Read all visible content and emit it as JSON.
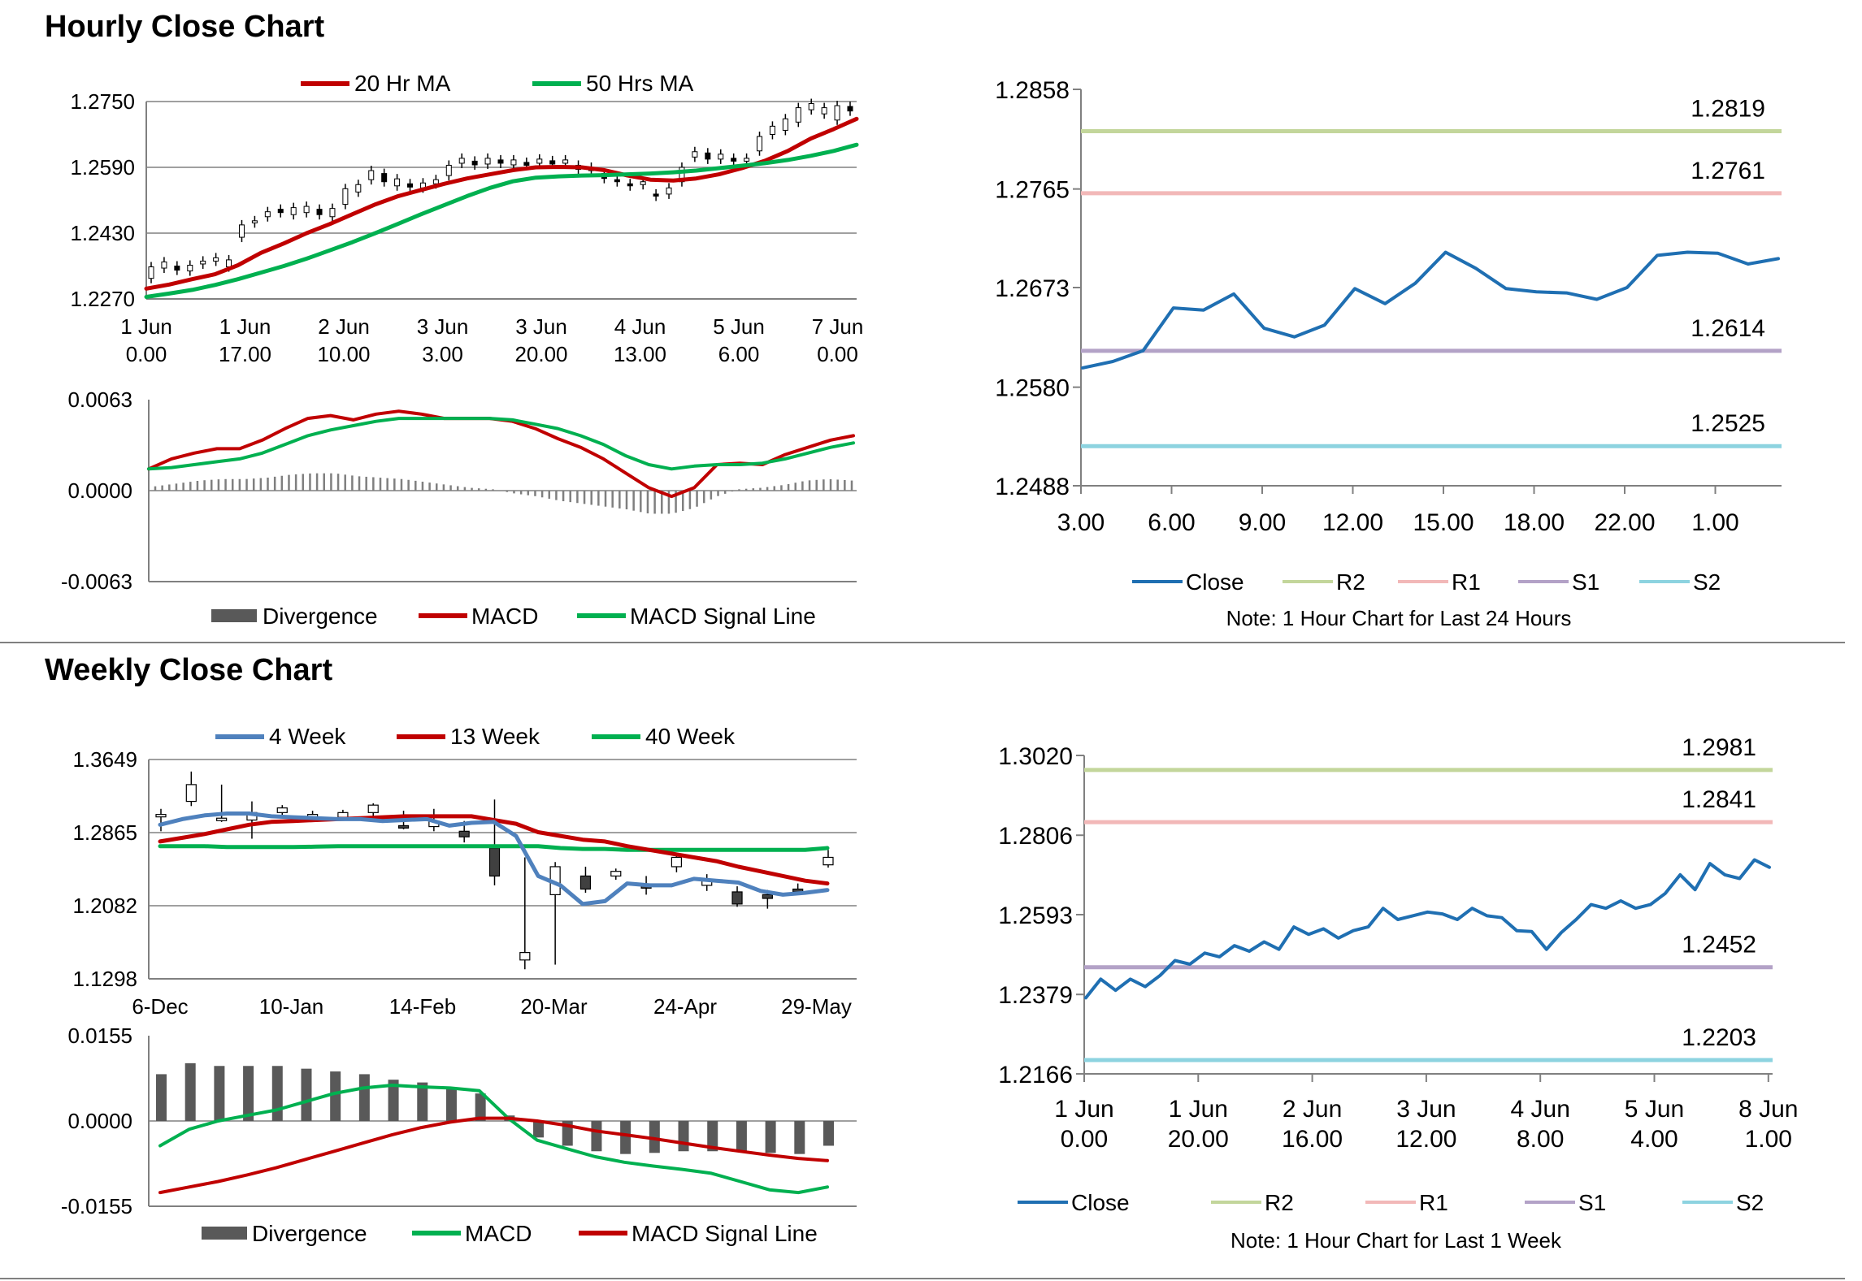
{
  "hourly_section": {
    "title": "Hourly Close Chart"
  },
  "weekly_section": {
    "title": "Weekly Close Chart"
  },
  "colors": {
    "red": "#c00000",
    "green": "#00b050",
    "blue": "#4f81bd",
    "close": "#1f6fb2",
    "r2": "#c3d69b",
    "r1": "#f2b8b8",
    "s1": "#b3a2c7",
    "s2": "#8dd3e0",
    "gray": "#595959"
  },
  "chart_data": [
    {
      "id": "hourly_price",
      "type": "candlestick",
      "title": "",
      "legend": [
        "20 Hr MA",
        "50 Hrs MA"
      ],
      "y_ticks": [
        "1.2750",
        "1.2590",
        "1.2430",
        "1.2270"
      ],
      "ylim": [
        1.227,
        1.275
      ],
      "x_ticks": [
        [
          "1 Jun",
          "0.00"
        ],
        [
          "1 Jun",
          "17.00"
        ],
        [
          "2 Jun",
          "10.00"
        ],
        [
          "3 Jun",
          "3.00"
        ],
        [
          "3 Jun",
          "20.00"
        ],
        [
          "4 Jun",
          "13.00"
        ],
        [
          "5 Jun",
          "6.00"
        ],
        [
          "7 Jun",
          "0.00"
        ]
      ],
      "series": [
        {
          "name": "20 Hr MA",
          "values": [
            1.2295,
            1.2305,
            1.2318,
            1.233,
            1.2352,
            1.2382,
            1.2405,
            1.243,
            1.2452,
            1.2476,
            1.25,
            1.252,
            1.2535,
            1.255,
            1.2563,
            1.2573,
            1.2583,
            1.259,
            1.2591,
            1.259,
            1.2583,
            1.257,
            1.256,
            1.2558,
            1.2563,
            1.2573,
            1.2588,
            1.2606,
            1.263,
            1.266,
            1.2683,
            1.2708
          ]
        },
        {
          "name": "50 Hrs MA",
          "values": [
            1.2275,
            1.2283,
            1.2292,
            1.2304,
            1.2318,
            1.2334,
            1.235,
            1.2368,
            1.2388,
            1.2408,
            1.243,
            1.2453,
            1.2476,
            1.2498,
            1.252,
            1.254,
            1.2556,
            1.2565,
            1.2568,
            1.257,
            1.2571,
            1.2573,
            1.2575,
            1.2578,
            1.2582,
            1.2588,
            1.2594,
            1.26,
            1.2608,
            1.2618,
            1.263,
            1.2645
          ]
        }
      ],
      "candles": [
        [
          1.232,
          1.2348
        ],
        [
          1.2345,
          1.236
        ],
        [
          1.235,
          1.234
        ],
        [
          1.2338,
          1.2352
        ],
        [
          1.2355,
          1.2362
        ],
        [
          1.2362,
          1.237
        ],
        [
          1.2348,
          1.2365
        ],
        [
          1.242,
          1.245
        ],
        [
          1.2455,
          1.246
        ],
        [
          1.247,
          1.2482
        ],
        [
          1.2488,
          1.248
        ],
        [
          1.2475,
          1.2492
        ],
        [
          1.248,
          1.2495
        ],
        [
          1.2488,
          1.2475
        ],
        [
          1.247,
          1.249
        ],
        [
          1.25,
          1.2538
        ],
        [
          1.253,
          1.2548
        ],
        [
          1.256,
          1.2582
        ],
        [
          1.2575,
          1.2555
        ],
        [
          1.2545,
          1.2562
        ],
        [
          1.255,
          1.2542
        ],
        [
          1.254,
          1.2552
        ],
        [
          1.255,
          1.256
        ],
        [
          1.257,
          1.2595
        ],
        [
          1.26,
          1.2612
        ],
        [
          1.2605,
          1.2596
        ],
        [
          1.2598,
          1.2612
        ],
        [
          1.2608,
          1.26
        ],
        [
          1.2596,
          1.2608
        ],
        [
          1.2602,
          1.2595
        ],
        [
          1.26,
          1.261
        ],
        [
          1.2606,
          1.2598
        ],
        [
          1.26,
          1.2608
        ],
        [
          1.2595,
          1.2585
        ],
        [
          1.2582,
          1.259
        ],
        [
          1.2575,
          1.2563
        ],
        [
          1.256,
          1.2555
        ],
        [
          1.255,
          1.2545
        ],
        [
          1.2548,
          1.2555
        ],
        [
          1.2525,
          1.252
        ],
        [
          1.2525,
          1.254
        ],
        [
          1.2555,
          1.259
        ],
        [
          1.2615,
          1.2628
        ],
        [
          1.2625,
          1.261
        ],
        [
          1.261,
          1.2622
        ],
        [
          1.2612,
          1.2605
        ],
        [
          1.2605,
          1.2612
        ],
        [
          1.263,
          1.2665
        ],
        [
          1.267,
          1.269
        ],
        [
          1.268,
          1.2708
        ],
        [
          1.27,
          1.2735
        ],
        [
          1.273,
          1.2745
        ],
        [
          1.272,
          1.2735
        ],
        [
          1.2705,
          1.274
        ],
        [
          1.2738,
          1.2727
        ]
      ]
    },
    {
      "id": "hourly_macd",
      "type": "line",
      "legend": [
        "Divergence",
        "MACD",
        "MACD Signal Line"
      ],
      "y_ticks": [
        "0.0063",
        "0.0000",
        "-0.0063"
      ],
      "ylim": [
        -0.0063,
        0.0063
      ],
      "series": [
        {
          "name": "MACD",
          "values": [
            0.0015,
            0.0022,
            0.0026,
            0.0029,
            0.0029,
            0.0035,
            0.0043,
            0.005,
            0.0052,
            0.0049,
            0.0053,
            0.0055,
            0.0053,
            0.005,
            0.005,
            0.005,
            0.0048,
            0.0043,
            0.0036,
            0.003,
            0.0022,
            0.0012,
            0.0002,
            -0.0004,
            0.0002,
            0.0018,
            0.0019,
            0.0018,
            0.0025,
            0.003,
            0.0035,
            0.0038
          ]
        },
        {
          "name": "MACD Signal Line",
          "values": [
            0.0015,
            0.0016,
            0.0018,
            0.002,
            0.0022,
            0.0026,
            0.0032,
            0.0038,
            0.0042,
            0.0045,
            0.0048,
            0.005,
            0.005,
            0.005,
            0.005,
            0.005,
            0.0049,
            0.0046,
            0.0043,
            0.0038,
            0.0032,
            0.0024,
            0.0018,
            0.0015,
            0.0017,
            0.0018,
            0.0018,
            0.0019,
            0.0022,
            0.0026,
            0.003,
            0.0033
          ]
        },
        {
          "name": "Divergence",
          "values": [
            0.0003,
            0.0005,
            0.0007,
            0.0008,
            0.0008,
            0.0009,
            0.0011,
            0.0012,
            0.0012,
            0.001,
            0.0009,
            0.0008,
            0.0006,
            0.0004,
            0.0002,
            0.0001,
            -0.0002,
            -0.0004,
            -0.0007,
            -0.0009,
            -0.0011,
            -0.0013,
            -0.0016,
            -0.0016,
            -0.0012,
            -0.0004,
            0.0001,
            0.0002,
            0.0004,
            0.0007,
            0.0008,
            0.0007
          ]
        }
      ]
    },
    {
      "id": "hourly_close",
      "type": "line",
      "y_ticks": [
        "1.2858",
        "1.2765",
        "1.2673",
        "1.2580",
        "1.2488"
      ],
      "ylim": [
        1.2488,
        1.2858
      ],
      "x_ticks": [
        "3.00",
        "6.00",
        "9.00",
        "12.00",
        "15.00",
        "18.00",
        "22.00",
        "1.00"
      ],
      "levels": [
        {
          "name": "R2",
          "value": 1.2819,
          "label": "1.2819"
        },
        {
          "name": "R1",
          "value": 1.2761,
          "label": "1.2761"
        },
        {
          "name": "S1",
          "value": 1.2614,
          "label": "1.2614"
        },
        {
          "name": "S2",
          "value": 1.2525,
          "label": "1.2525"
        }
      ],
      "series": [
        {
          "name": "Close",
          "values": [
            1.2598,
            1.2604,
            1.2614,
            1.2654,
            1.2652,
            1.2667,
            1.2635,
            1.2627,
            1.2638,
            1.2672,
            1.2658,
            1.2677,
            1.2706,
            1.2691,
            1.2672,
            1.2669,
            1.2668,
            1.2662,
            1.2673,
            1.2703,
            1.2706,
            1.2705,
            1.2695,
            1.27
          ]
        }
      ],
      "legend": [
        "Close",
        "R2",
        "R1",
        "S1",
        "S2"
      ],
      "note": "Note: 1 Hour Chart for Last 24 Hours"
    },
    {
      "id": "weekly_price",
      "type": "candlestick",
      "legend": [
        "4 Week",
        "13 Week",
        "40 Week"
      ],
      "y_ticks": [
        "1.3649",
        "1.2865",
        "1.2082",
        "1.1298"
      ],
      "ylim": [
        1.1298,
        1.3649
      ],
      "x_ticks": [
        "6-Dec",
        "10-Jan",
        "14-Feb",
        "20-Mar",
        "24-Apr",
        "29-May"
      ],
      "series": [
        {
          "name": "4 Week",
          "values": [
            1.295,
            1.301,
            1.305,
            1.307,
            1.307,
            1.304,
            1.303,
            1.302,
            1.301,
            1.301,
            1.299,
            1.3,
            1.301,
            1.294,
            1.297,
            1.298,
            1.283,
            1.24,
            1.23,
            1.21,
            1.213,
            1.232,
            1.23,
            1.23,
            1.237,
            1.235,
            1.233,
            1.224,
            1.22,
            1.222,
            1.225
          ]
        },
        {
          "name": "13 Week",
          "values": [
            1.277,
            1.281,
            1.285,
            1.29,
            1.295,
            1.298,
            1.299,
            1.3,
            1.301,
            1.302,
            1.303,
            1.304,
            1.304,
            1.304,
            1.304,
            1.3,
            1.296,
            1.287,
            1.283,
            1.279,
            1.277,
            1.272,
            1.268,
            1.264,
            1.26,
            1.256,
            1.25,
            1.245,
            1.24,
            1.235,
            1.232
          ]
        },
        {
          "name": "40 Week",
          "values": [
            1.272,
            1.272,
            1.272,
            1.271,
            1.271,
            1.271,
            1.271,
            1.2715,
            1.272,
            1.272,
            1.272,
            1.272,
            1.272,
            1.272,
            1.272,
            1.272,
            1.272,
            1.272,
            1.27,
            1.269,
            1.269,
            1.268,
            1.268,
            1.268,
            1.268,
            1.268,
            1.268,
            1.268,
            1.268,
            1.268,
            1.27
          ]
        }
      ],
      "candles": [
        [
          1.305,
          1.306,
          1.312,
          1.288
        ],
        [
          1.32,
          1.338,
          1.352,
          1.315
        ],
        [
          1.3,
          1.302,
          1.338,
          1.298
        ],
        [
          1.3,
          1.308,
          1.32,
          1.28
        ],
        [
          1.308,
          1.313,
          1.316,
          1.303
        ],
        [
          1.305,
          1.306,
          1.31,
          1.298
        ],
        [
          1.303,
          1.308,
          1.311,
          1.3
        ],
        [
          1.308,
          1.316,
          1.318,
          1.3
        ],
        [
          1.294,
          1.292,
          1.31,
          1.29
        ],
        [
          1.293,
          1.299,
          1.312,
          1.288
        ],
        [
          1.288,
          1.282,
          1.299,
          1.276
        ],
        [
          1.27,
          1.24,
          1.322,
          1.23
        ],
        [
          1.15,
          1.158,
          1.26,
          1.14
        ],
        [
          1.22,
          1.25,
          1.255,
          1.145
        ],
        [
          1.24,
          1.226,
          1.25,
          1.222
        ],
        [
          1.24,
          1.245,
          1.248,
          1.236
        ],
        [
          1.23,
          1.227,
          1.24,
          1.22
        ],
        [
          1.25,
          1.26,
          1.262,
          1.244
        ],
        [
          1.23,
          1.235,
          1.242,
          1.224
        ],
        [
          1.223,
          1.21,
          1.229,
          1.207
        ],
        [
          1.22,
          1.216,
          1.225,
          1.205
        ],
        [
          1.226,
          1.223,
          1.232,
          1.222
        ],
        [
          1.252,
          1.26,
          1.268,
          1.249
        ]
      ]
    },
    {
      "id": "weekly_macd",
      "type": "line",
      "legend": [
        "Divergence",
        "MACD",
        "MACD Signal Line"
      ],
      "y_ticks": [
        "0.0155",
        "0.0000",
        "-0.0155"
      ],
      "ylim": [
        -0.0155,
        0.0155
      ],
      "series": [
        {
          "name": "MACD",
          "values": [
            -0.0045,
            -0.0015,
            0.0,
            0.001,
            0.002,
            0.0035,
            0.005,
            0.006,
            0.0065,
            0.0062,
            0.006,
            0.0055,
            0.0005,
            -0.0035,
            -0.005,
            -0.0065,
            -0.0075,
            -0.0082,
            -0.0088,
            -0.0095,
            -0.011,
            -0.0125,
            -0.013,
            -0.012
          ]
        },
        {
          "name": "MACD Signal Line",
          "values": [
            -0.013,
            -0.012,
            -0.011,
            -0.0098,
            -0.0085,
            -0.007,
            -0.0055,
            -0.004,
            -0.0025,
            -0.0012,
            -0.0002,
            0.0005,
            0.0005,
            0.0,
            -0.0008,
            -0.0018,
            -0.0025,
            -0.0032,
            -0.004,
            -0.0048,
            -0.0055,
            -0.0062,
            -0.0068,
            -0.0072
          ]
        },
        {
          "name": "Divergence",
          "values": [
            0.0085,
            0.0105,
            0.01,
            0.01,
            0.01,
            0.0095,
            0.009,
            0.0085,
            0.0075,
            0.007,
            0.006,
            0.005,
            0.001,
            -0.003,
            -0.0045,
            -0.0055,
            -0.006,
            -0.0058,
            -0.0055,
            -0.0055,
            -0.0055,
            -0.0058,
            -0.006,
            -0.0045
          ]
        }
      ]
    },
    {
      "id": "weekly_close",
      "type": "line",
      "y_ticks": [
        "1.3020",
        "1.2806",
        "1.2593",
        "1.2379",
        "1.2166"
      ],
      "ylim": [
        1.2166,
        1.302
      ],
      "x_ticks": [
        [
          "1 Jun",
          "0.00"
        ],
        [
          "1 Jun",
          "20.00"
        ],
        [
          "2 Jun",
          "16.00"
        ],
        [
          "3 Jun",
          "12.00"
        ],
        [
          "4 Jun",
          "8.00"
        ],
        [
          "5 Jun",
          "4.00"
        ],
        [
          "8 Jun",
          "1.00"
        ]
      ],
      "levels": [
        {
          "name": "R2",
          "value": 1.2981,
          "label": "1.2981"
        },
        {
          "name": "R1",
          "value": 1.2841,
          "label": "1.2841"
        },
        {
          "name": "S1",
          "value": 1.2452,
          "label": "1.2452"
        },
        {
          "name": "S2",
          "value": 1.2203,
          "label": "1.2203"
        }
      ],
      "series": [
        {
          "name": "Close",
          "values": [
            1.237,
            1.242,
            1.239,
            1.242,
            1.24,
            1.243,
            1.247,
            1.246,
            1.249,
            1.248,
            1.251,
            1.2495,
            1.252,
            1.25,
            1.256,
            1.254,
            1.2555,
            1.253,
            1.255,
            1.256,
            1.261,
            1.258,
            1.259,
            1.26,
            1.2595,
            1.258,
            1.261,
            1.259,
            1.2585,
            1.255,
            1.2548,
            1.25,
            1.2545,
            1.258,
            1.262,
            1.261,
            1.263,
            1.261,
            1.262,
            1.265,
            1.27,
            1.266,
            1.273,
            1.27,
            1.269,
            1.274,
            1.272
          ]
        }
      ],
      "legend": [
        "Close",
        "R2",
        "R1",
        "S1",
        "S2"
      ],
      "note": "Note: 1 Hour Chart for Last 1 Week"
    }
  ]
}
